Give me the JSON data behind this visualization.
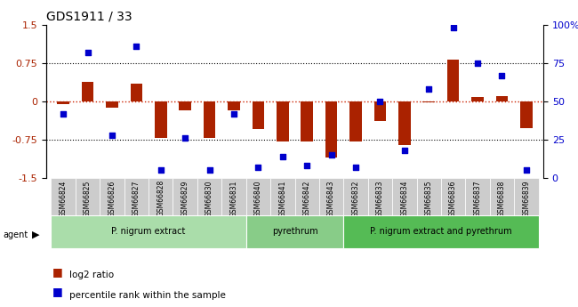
{
  "title": "GDS1911 / 33",
  "samples": [
    "GSM66824",
    "GSM66825",
    "GSM66826",
    "GSM66827",
    "GSM66828",
    "GSM66829",
    "GSM66830",
    "GSM66831",
    "GSM66840",
    "GSM66841",
    "GSM66842",
    "GSM66843",
    "GSM66832",
    "GSM66833",
    "GSM66834",
    "GSM66835",
    "GSM66836",
    "GSM66837",
    "GSM66838",
    "GSM66839"
  ],
  "log2_ratio": [
    -0.05,
    0.38,
    -0.12,
    0.35,
    -0.72,
    -0.18,
    -0.72,
    -0.18,
    -0.55,
    -0.78,
    -0.78,
    -1.1,
    -0.78,
    -0.38,
    -0.85,
    -0.02,
    0.82,
    0.08,
    0.1,
    -0.52
  ],
  "percentile": [
    42,
    82,
    28,
    86,
    5,
    26,
    5,
    42,
    7,
    14,
    8,
    15,
    7,
    50,
    18,
    58,
    98,
    75,
    67,
    5
  ],
  "groups": [
    {
      "label": "P. nigrum extract",
      "start": 0,
      "end": 8,
      "color": "#aaddaa"
    },
    {
      "label": "pyrethrum",
      "start": 8,
      "end": 12,
      "color": "#88cc88"
    },
    {
      "label": "P. nigrum extract and pyrethrum",
      "start": 12,
      "end": 20,
      "color": "#55bb55"
    }
  ],
  "bar_color": "#aa2200",
  "dot_color": "#0000cc",
  "ylim_left": [
    -1.5,
    1.5
  ],
  "ylim_right": [
    0,
    100
  ],
  "yticks_left": [
    -1.5,
    -0.75,
    0,
    0.75,
    1.5
  ],
  "yticks_right": [
    0,
    25,
    50,
    75,
    100
  ],
  "hlines": [
    0.75,
    -0.75
  ],
  "hline_zero_color": "#cc2200",
  "hline_color": "black",
  "background_color": "#f5f5f5"
}
